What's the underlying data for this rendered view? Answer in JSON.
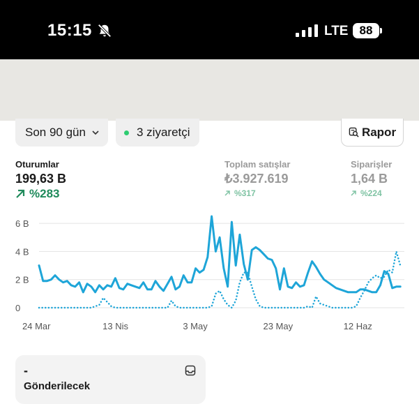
{
  "status_bar": {
    "time": "15:15",
    "network": "LTE",
    "battery": "88",
    "icons": [
      "bell-slash-icon",
      "signal-icon"
    ]
  },
  "filters": {
    "range_label": "Son 90 gün",
    "visitors_label": "3 ziyaretçi",
    "visitor_dot_color": "#2ecc71",
    "report_label": "Rapor"
  },
  "metrics": [
    {
      "label": "Oturumlar",
      "value": "199,63 B",
      "change": "%283"
    },
    {
      "label": "Toplam satışlar",
      "value": "₺3.927.619",
      "change": "%317"
    },
    {
      "label": "Siparişler",
      "value": "1,64 B",
      "change": "%224"
    }
  ],
  "colors": {
    "primary_line": "#1ea5d8",
    "positive": "#1f8a5b",
    "positive_muted": "#7fc3a3"
  },
  "chart_data": {
    "type": "line",
    "y_tick_labels": [
      "6 B",
      "4 B",
      "2 B",
      "0"
    ],
    "y_ticks": [
      6000,
      4000,
      2000,
      0
    ],
    "x_tick_labels": [
      "24 Mar",
      "13 Nis",
      "3 May",
      "23 May",
      "12 Haz"
    ],
    "x_tick_days": [
      0,
      20,
      40,
      60,
      80
    ],
    "ylim": [
      0,
      6500
    ],
    "xlim": [
      0,
      91
    ],
    "grid": true,
    "series": [
      {
        "style": "solid",
        "values": [
          3000,
          1900,
          1900,
          2000,
          2300,
          2000,
          1800,
          1900,
          1600,
          1500,
          1800,
          1100,
          1700,
          1500,
          1100,
          1600,
          1300,
          1600,
          1500,
          2100,
          1400,
          1300,
          1700,
          1600,
          1500,
          1400,
          1800,
          1300,
          1300,
          1900,
          1500,
          1200,
          1700,
          2200,
          1300,
          1500,
          2300,
          1800,
          1800,
          2800,
          2500,
          2700,
          3600,
          6500,
          4000,
          5000,
          2800,
          1500,
          6100,
          3000,
          5200,
          3100,
          2000,
          4100,
          4300,
          4100,
          3800,
          3500,
          3400,
          2800,
          1300,
          2800,
          1500,
          1400,
          1800,
          1500,
          1600,
          2500,
          3300,
          2900,
          2400,
          2000,
          1800,
          1600,
          1400,
          1300,
          1200,
          1100,
          1100,
          1100,
          1300,
          1300,
          1200,
          1100,
          1100,
          1600,
          2600,
          2400,
          1400,
          1500,
          1500
        ]
      },
      {
        "style": "dotted",
        "values": [
          0,
          0,
          0,
          0,
          0,
          0,
          0,
          0,
          0,
          0,
          0,
          0,
          0,
          0,
          100,
          200,
          700,
          400,
          100,
          0,
          0,
          0,
          0,
          0,
          0,
          0,
          0,
          0,
          0,
          0,
          0,
          0,
          0,
          500,
          100,
          0,
          0,
          0,
          0,
          0,
          0,
          0,
          0,
          100,
          1000,
          1200,
          600,
          200,
          0,
          500,
          1800,
          2500,
          2500,
          1500,
          600,
          100,
          0,
          0,
          0,
          0,
          0,
          0,
          0,
          0,
          0,
          0,
          0,
          100,
          0,
          800,
          300,
          200,
          100,
          0,
          0,
          0,
          0,
          0,
          0,
          100,
          700,
          1200,
          1800,
          2100,
          2300,
          2100,
          2200,
          2700,
          2500,
          4000,
          3000
        ]
      }
    ]
  },
  "card": {
    "value": "-",
    "label": "Gönderilecek"
  }
}
